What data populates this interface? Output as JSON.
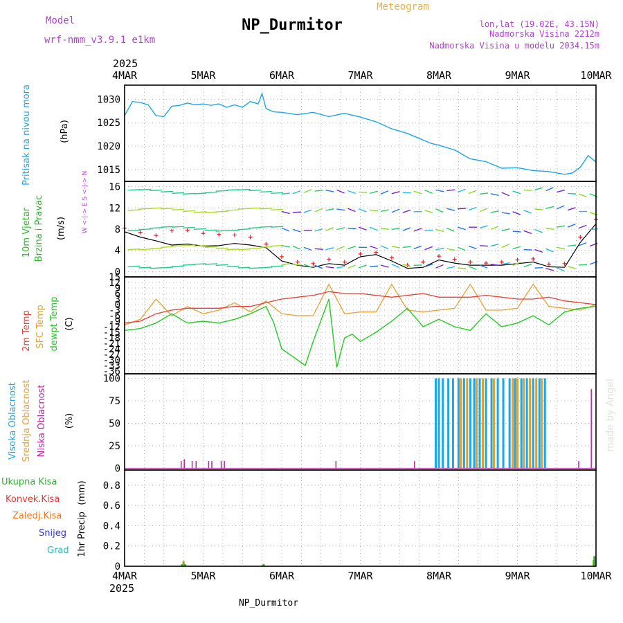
{
  "header": {
    "model_label": "Model",
    "model_name": "wrf-nmm_v3.9.1 e1km",
    "title": "NP_Durmitor",
    "meteogram_label": "Meteogram",
    "lonlat": "lon,lat (19.02E, 43.15N)",
    "altitude": "Nadmorska Visina 2212m",
    "model_altitude": "Nadmorska Visina u modelu 2034.15m",
    "footer_title": "NP_Durmitor",
    "credit": "made by Angel"
  },
  "time_axis": {
    "year": "2025",
    "ticks": [
      "4MAR",
      "5MAR",
      "6MAR",
      "7MAR",
      "8MAR",
      "9MAR",
      "10MAR"
    ]
  },
  "colors": {
    "pressure": "#1aa7e8",
    "wind_speed": "#000000",
    "wind_gust": "#e0202a",
    "temp_2m": "#e8403a",
    "temp_sfc": "#e8a030",
    "dewpoint": "#22cc22",
    "cloud_high": "#1aa7e8",
    "cloud_mid": "#e0a030",
    "cloud_low": "#c020a0",
    "precip_total": "#22bb22",
    "precip_conv": "#ee3333",
    "precip_frozen": "#ee7722",
    "snow": "#3333ee",
    "hail": "#22bbbb"
  },
  "chart_data": [
    {
      "type": "line",
      "name": "pressure",
      "ylabel": "Pritisak na nivou mora",
      "unit": "(hPa)",
      "yticks": [
        1015,
        1020,
        1025,
        1030
      ],
      "ylim": [
        1012.5,
        1033
      ],
      "x_days": [
        0,
        0.1,
        0.2,
        0.3,
        0.4,
        0.5,
        0.6,
        0.7,
        0.8,
        0.9,
        1.0,
        1.1,
        1.2,
        1.3,
        1.4,
        1.5,
        1.6,
        1.7,
        1.75,
        1.8,
        1.9,
        2.0,
        2.2,
        2.4,
        2.6,
        2.8,
        3.0,
        3.2,
        3.4,
        3.6,
        3.8,
        3.9,
        4.0,
        4.2,
        4.4,
        4.6,
        4.8,
        5.0,
        5.2,
        5.4,
        5.6,
        5.7,
        5.8,
        5.9,
        6.0
      ],
      "values": [
        1026.5,
        1029.5,
        1029.3,
        1028.8,
        1026.5,
        1026.3,
        1028.5,
        1028.7,
        1029.2,
        1028.8,
        1029.0,
        1028.7,
        1029.0,
        1028.3,
        1028.8,
        1028.3,
        1029.5,
        1029.0,
        1031.2,
        1028.0,
        1027.3,
        1027.2,
        1026.7,
        1027.2,
        1026.3,
        1027.0,
        1026.2,
        1025.2,
        1023.7,
        1022.7,
        1021.3,
        1020.6,
        1020.2,
        1019.2,
        1017.3,
        1016.7,
        1015.3,
        1015.4,
        1014.8,
        1014.6,
        1014.0,
        1014.3,
        1015.5,
        1018.0,
        1016.6
      ]
    },
    {
      "type": "line",
      "name": "wind",
      "ylabel": "10m Vjetar",
      "ylabel2": "Brzina i Pravac",
      "unit": "(m/s)",
      "yticks": [
        0,
        4,
        8,
        12,
        16
      ],
      "ylim": [
        -1,
        17
      ],
      "compass": "W <-|-> E   S <-|-> N",
      "series": [
        {
          "role": "speed",
          "x_days": [
            0,
            0.2,
            0.4,
            0.6,
            0.8,
            1.0,
            1.2,
            1.4,
            1.6,
            1.8,
            2.0,
            2.2,
            2.4,
            2.6,
            2.8,
            3.0,
            3.2,
            3.4,
            3.6,
            3.8,
            4.0,
            4.2,
            4.4,
            4.6,
            4.8,
            5.0,
            5.2,
            5.4,
            5.6,
            5.8,
            6.0
          ],
          "values": [
            7.5,
            6.5,
            5.8,
            5.0,
            5.2,
            4.8,
            4.9,
            5.3,
            5.0,
            4.5,
            2.0,
            1.2,
            0.8,
            1.5,
            1.2,
            2.8,
            3.2,
            2.0,
            0.6,
            0.8,
            2.2,
            1.6,
            1.2,
            1.2,
            1.2,
            1.5,
            1.8,
            0.9,
            0.8,
            5.5,
            9.0
          ]
        },
        {
          "role": "gust",
          "x_days": [
            0,
            0.2,
            0.4,
            0.6,
            0.8,
            1.0,
            1.2,
            1.4,
            1.6,
            1.8,
            2.0,
            2.2,
            2.4,
            2.6,
            2.8,
            3.0,
            3.2,
            3.4,
            3.6,
            3.8,
            4.0,
            4.2,
            4.4,
            4.6,
            4.8,
            5.0,
            5.2,
            5.4,
            5.6,
            5.8,
            6.0
          ],
          "values": [
            8.2,
            7.4,
            6.8,
            7.7,
            7.8,
            7.2,
            7.0,
            6.9,
            6.5,
            5.2,
            2.8,
            1.8,
            1.5,
            2.3,
            1.8,
            3.3,
            3.6,
            2.6,
            1.2,
            1.8,
            2.9,
            2.3,
            1.8,
            1.6,
            1.8,
            2.2,
            2.4,
            1.4,
            1.5,
            6.5,
            9.8
          ]
        }
      ]
    },
    {
      "type": "line",
      "name": "temperature",
      "ylabel": "2m Temp",
      "ylabel2": "SFC Temp",
      "ylabel3": "dewpt Temp",
      "unit": "(C)",
      "yticks": [
        15,
        12,
        9,
        6,
        3,
        0,
        -3,
        -6,
        -9,
        -12,
        -15,
        -18,
        -21,
        -24,
        -27,
        -30,
        -33,
        -36
      ],
      "ylim": [
        -37.5,
        15
      ],
      "series": [
        {
          "role": "temp_2m",
          "x_days": [
            0,
            0.2,
            0.4,
            0.6,
            0.8,
            1.0,
            1.2,
            1.4,
            1.6,
            1.8,
            2.0,
            2.2,
            2.4,
            2.6,
            2.8,
            3.0,
            3.2,
            3.4,
            3.6,
            3.8,
            4.0,
            4.2,
            4.4,
            4.6,
            4.8,
            5.0,
            5.2,
            5.4,
            5.6,
            5.8,
            6.0
          ],
          "values": [
            -10,
            -9,
            -5,
            -3,
            -2,
            -2,
            -2,
            -1,
            -1,
            1,
            3,
            4,
            5,
            7,
            6,
            6,
            5,
            4,
            5,
            6,
            4,
            4,
            4,
            5,
            4,
            3,
            3,
            4,
            2,
            1,
            0
          ]
        },
        {
          "role": "temp_sfc",
          "x_days": [
            0,
            0.2,
            0.4,
            0.6,
            0.8,
            1.0,
            1.2,
            1.4,
            1.6,
            1.8,
            2.0,
            2.2,
            2.4,
            2.6,
            2.8,
            3.0,
            3.2,
            3.4,
            3.6,
            3.8,
            4.0,
            4.2,
            4.4,
            4.6,
            4.8,
            5.0,
            5.2,
            5.4,
            5.6,
            5.8,
            6.0
          ],
          "values": [
            -11,
            -8,
            3,
            -6,
            -1,
            -5,
            -3,
            1,
            -4,
            2,
            -5,
            -6,
            -6,
            11,
            -5,
            -4,
            -4,
            11,
            -3,
            -4,
            -3,
            -2,
            11,
            -3,
            -3,
            -2,
            11,
            -1,
            -2,
            -3,
            0
          ]
        },
        {
          "role": "dewpoint",
          "x_days": [
            0,
            0.2,
            0.4,
            0.6,
            0.8,
            1.0,
            1.2,
            1.4,
            1.6,
            1.8,
            1.9,
            2.0,
            2.2,
            2.3,
            2.4,
            2.6,
            2.7,
            2.8,
            2.9,
            3.0,
            3.2,
            3.4,
            3.6,
            3.8,
            4.0,
            4.2,
            4.4,
            4.6,
            4.8,
            5.0,
            5.2,
            5.4,
            5.6,
            5.8,
            6.0
          ],
          "values": [
            -14,
            -13,
            -10,
            -5,
            -10,
            -9,
            -10,
            -8,
            -5,
            -1,
            -10,
            -24,
            -30,
            -33,
            -20,
            3,
            -34,
            -18,
            -16,
            -20,
            -15,
            -9,
            -2,
            -12,
            -8,
            -12,
            -14,
            -5,
            -12,
            -10,
            -6,
            -11,
            -4,
            -2,
            -1
          ]
        }
      ]
    },
    {
      "type": "bar",
      "name": "clouds",
      "ylabel": "Visoka Oblacnost",
      "ylabel2": "Srednja Oblacnost",
      "ylabel3": "Niska Oblacnost",
      "unit": "(%)",
      "yticks": [
        0,
        25,
        50,
        75,
        100
      ],
      "ylim": [
        -2,
        105
      ],
      "series": [
        {
          "role": "high",
          "x_days": [
            3.96,
            4.0,
            4.05,
            4.12,
            4.18,
            4.25,
            4.32,
            4.4,
            4.45,
            4.52,
            4.6,
            4.67,
            4.75,
            4.82,
            4.9,
            4.97,
            5.05,
            5.12,
            5.2,
            5.28,
            5.35
          ],
          "values": [
            100,
            100,
            100,
            100,
            100,
            100,
            100,
            100,
            100,
            100,
            100,
            100,
            100,
            100,
            100,
            100,
            100,
            100,
            100,
            100,
            100
          ]
        },
        {
          "role": "mid",
          "x_days": [
            4.28,
            4.36,
            4.48,
            4.56,
            4.7,
            4.94,
            5.0,
            5.08,
            5.16,
            5.24,
            5.31
          ],
          "values": [
            100,
            100,
            100,
            100,
            100,
            100,
            100,
            100,
            100,
            100,
            100
          ]
        },
        {
          "role": "low",
          "x_days": [
            0.72,
            0.76,
            0.86,
            0.91,
            1.07,
            1.11,
            1.23,
            1.27,
            2.69,
            3.69,
            5.78,
            5.94
          ],
          "values": [
            8,
            10,
            8,
            8,
            8,
            8,
            8,
            8,
            8,
            8,
            8,
            88
          ]
        }
      ]
    },
    {
      "type": "bar",
      "name": "precipitation",
      "ylabel": "1hr Precip",
      "unit": "(mm)",
      "yticks": [
        0,
        0.2,
        0.4,
        0.6,
        0.8
      ],
      "ylim": [
        0,
        0.95
      ],
      "legend": [
        "Ukupna Kisa",
        "Konvek.Kisa",
        "Zaledj.Kisa",
        "Snijeg",
        "Grad"
      ],
      "x_days": [
        0.73,
        0.75,
        0.77,
        1.75,
        1.77,
        5.97,
        5.98
      ],
      "values": [
        0.02,
        0.05,
        0.02,
        0.01,
        0.02,
        0.06,
        0.1
      ]
    }
  ]
}
